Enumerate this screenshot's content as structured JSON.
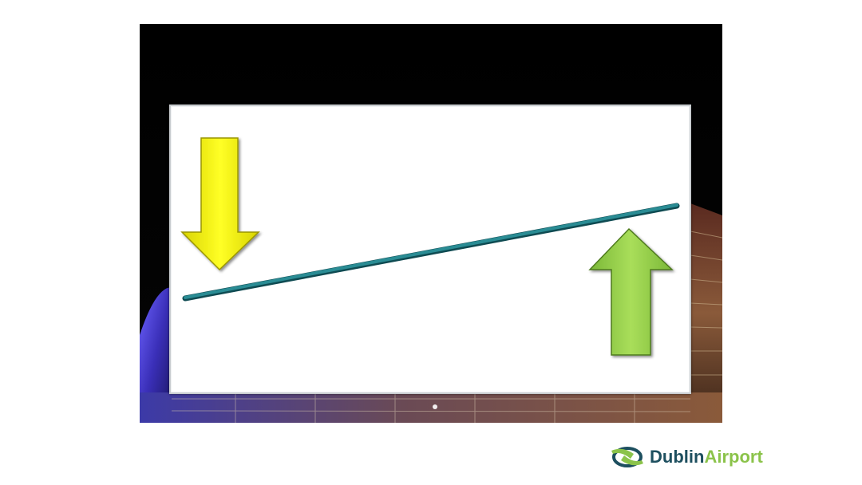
{
  "logo": {
    "word1": "Dublin",
    "word2": "Airport",
    "colors": {
      "primary": "#1d4f5f",
      "accent": "#8bc34a"
    }
  },
  "arrows": {
    "down": {
      "direction": "down",
      "color": "#ffff1a"
    },
    "up": {
      "direction": "up",
      "color": "#9ad64a"
    }
  },
  "trend_line": {
    "direction": "rising",
    "color": "#1f7f86"
  },
  "background": {
    "subject": "airport-terminal-at-night"
  }
}
